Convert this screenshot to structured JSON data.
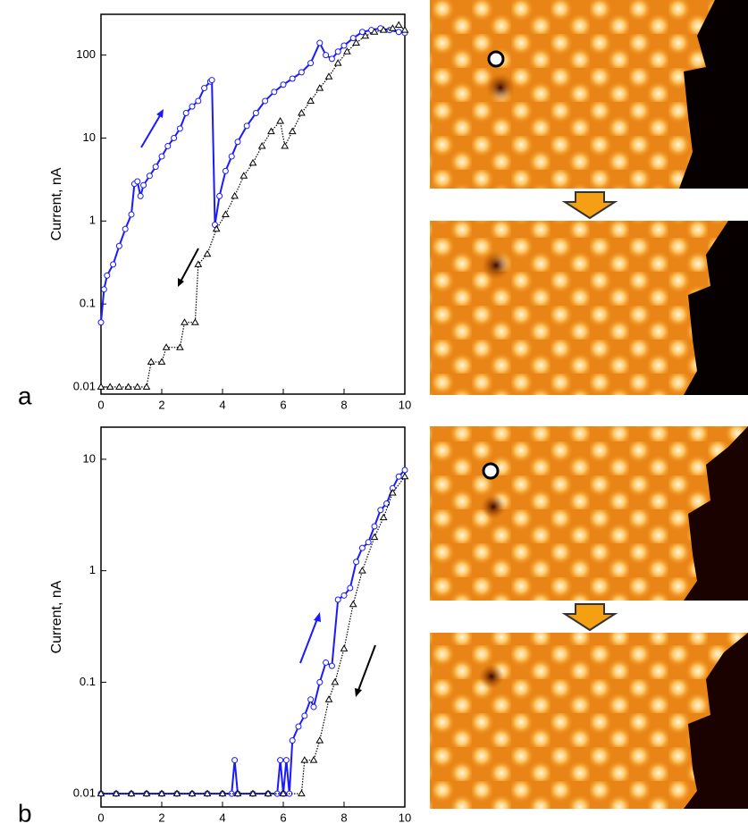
{
  "chart_data": [
    {
      "type": "line",
      "panel_label": "a",
      "y_label": "Current, nA",
      "ylog": true,
      "xlim": [
        0,
        10
      ],
      "xticks": [
        0,
        2,
        4,
        6,
        8,
        10
      ],
      "ylim": [
        0.0082,
        310
      ],
      "yticks": [
        0.01,
        0.1,
        1,
        10,
        100
      ],
      "series": [
        {
          "color": "#1a1aff",
          "marker": "circle",
          "x": [
            0,
            0.1,
            0.2,
            0.4,
            0.6,
            0.8,
            1.0,
            1.1,
            1.2,
            1.3,
            1.4,
            1.6,
            1.8,
            2.0,
            2.2,
            2.4,
            2.6,
            2.8,
            3.0,
            3.2,
            3.4,
            3.6,
            3.65,
            3.75,
            3.9,
            4.1,
            4.3,
            4.5,
            4.8,
            5.1,
            5.4,
            5.7,
            6.0,
            6.3,
            6.6,
            6.9,
            7.2,
            7.4,
            7.6,
            7.8,
            8.0,
            8.3,
            8.6,
            8.9,
            9.2,
            9.5,
            9.8,
            10
          ],
          "values": [
            0.06,
            0.15,
            0.22,
            0.3,
            0.5,
            0.8,
            1.2,
            2.8,
            3,
            2,
            2.7,
            3.5,
            4.5,
            6,
            8,
            10,
            13,
            20,
            24,
            28,
            40,
            48,
            50,
            0.9,
            2,
            4,
            6,
            9,
            14,
            20,
            28,
            36,
            44,
            52,
            62,
            80,
            140,
            100,
            90,
            110,
            130,
            160,
            190,
            200,
            210,
            200,
            190,
            185
          ]
        },
        {
          "color": "#000000",
          "marker": "triangle",
          "x": [
            0,
            0.3,
            0.6,
            0.9,
            1.2,
            1.5,
            1.65,
            2.0,
            2.15,
            2.6,
            2.75,
            3.1,
            3.2,
            3.5,
            3.8,
            4.1,
            4.4,
            4.7,
            5.0,
            5.3,
            5.6,
            5.9,
            6.05,
            6.3,
            6.6,
            6.9,
            7.2,
            7.5,
            7.8,
            8.1,
            8.4,
            8.7,
            9.0,
            9.3,
            9.6,
            9.8,
            10
          ],
          "values": [
            0.01,
            0.01,
            0.01,
            0.01,
            0.01,
            0.01,
            0.02,
            0.02,
            0.03,
            0.03,
            0.06,
            0.06,
            0.3,
            0.4,
            0.8,
            1.2,
            2,
            3.5,
            5,
            8,
            12,
            16,
            8,
            12,
            20,
            28,
            40,
            55,
            80,
            110,
            140,
            170,
            190,
            200,
            210,
            230,
            200
          ]
        }
      ]
    },
    {
      "type": "line",
      "panel_label": "b",
      "y_label": "Current, nA",
      "ylog": true,
      "xlim": [
        0,
        10
      ],
      "xticks": [
        0,
        2,
        4,
        6,
        8,
        10
      ],
      "ylim": [
        0.0076,
        19.4
      ],
      "yticks": [
        0.01,
        0.1,
        1,
        10
      ],
      "series": [
        {
          "color": "#1a1aff",
          "marker": "circle",
          "x": [
            0,
            0.5,
            1,
            1.5,
            2,
            2.5,
            3,
            3.5,
            4,
            4.3,
            4.4,
            4.5,
            5,
            5.5,
            5.8,
            5.9,
            6.0,
            6.1,
            6.2,
            6.3,
            6.5,
            6.7,
            6.9,
            7.0,
            7.2,
            7.4,
            7.6,
            7.8,
            8.0,
            8.2,
            8.4,
            8.6,
            8.8,
            9.0,
            9.2,
            9.4,
            9.6,
            9.8,
            10
          ],
          "values": [
            0.01,
            0.01,
            0.01,
            0.01,
            0.01,
            0.01,
            0.01,
            0.01,
            0.01,
            0.01,
            0.02,
            0.01,
            0.01,
            0.01,
            0.01,
            0.02,
            0.01,
            0.02,
            0.01,
            0.03,
            0.04,
            0.05,
            0.07,
            0.06,
            0.1,
            0.15,
            0.14,
            0.55,
            0.6,
            0.7,
            1.2,
            1.6,
            1.8,
            2.5,
            3.5,
            4,
            5.5,
            7,
            8
          ]
        },
        {
          "color": "#000000",
          "marker": "triangle",
          "x": [
            0,
            0.5,
            1,
            1.5,
            2,
            2.5,
            3,
            3.5,
            4,
            4.5,
            5,
            5.5,
            6,
            6.6,
            6.7,
            7.0,
            7.2,
            7.5,
            7.7,
            8.0,
            8.3,
            8.6,
            9.0,
            9.3,
            9.6,
            10
          ],
          "values": [
            0.01,
            0.01,
            0.01,
            0.01,
            0.01,
            0.01,
            0.01,
            0.01,
            0.01,
            0.01,
            0.01,
            0.01,
            0.01,
            0.01,
            0.02,
            0.02,
            0.03,
            0.07,
            0.1,
            0.2,
            0.5,
            1,
            2,
            3,
            5,
            7
          ]
        }
      ]
    }
  ]
}
